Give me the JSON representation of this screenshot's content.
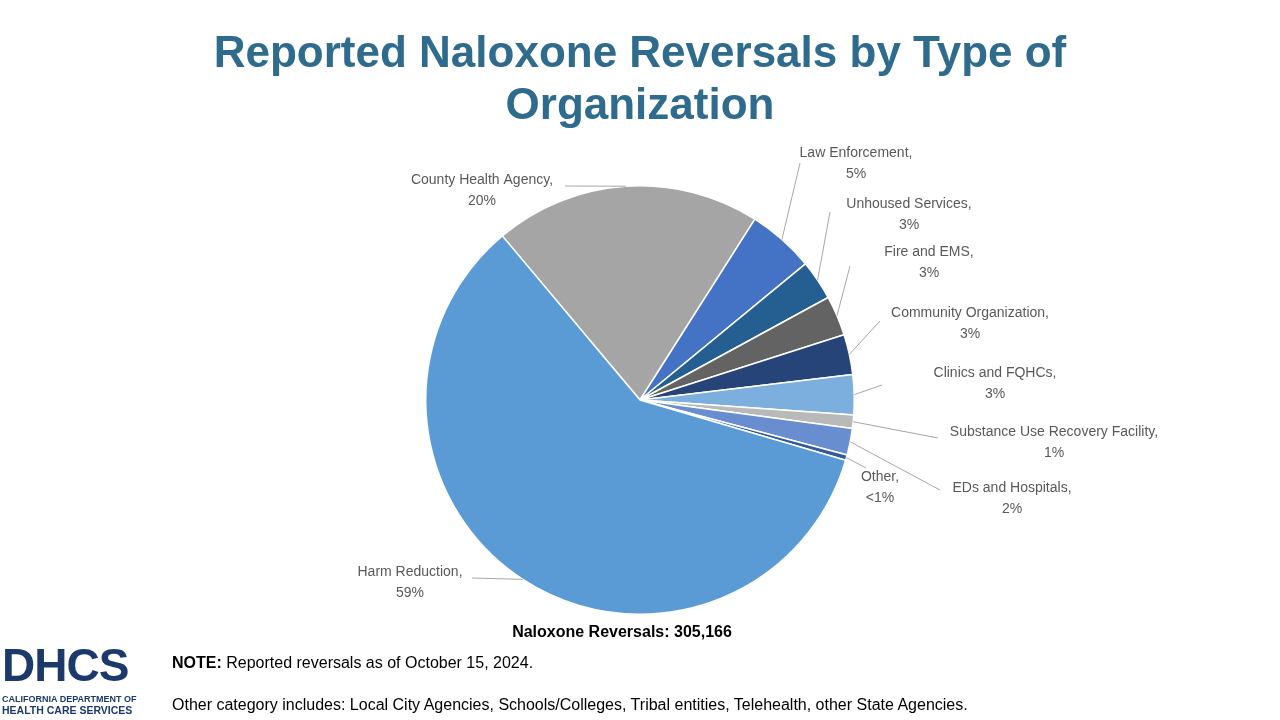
{
  "chart_data": {
    "type": "pie",
    "title": "Reported Naloxone Reversals by Type of Organization",
    "categories": [
      "County Health Agency,",
      "Law Enforcement,",
      "Unhoused Services,",
      "Fire and EMS,",
      "Community Organization,",
      "Clinics and FQHCs,",
      "Substance Use Recovery Facility,",
      "EDs and Hospitals,",
      "Other,",
      "Harm Reduction,"
    ],
    "values": [
      20,
      5,
      3,
      3,
      3,
      3,
      1,
      2,
      0.4,
      59
    ],
    "value_labels": [
      "20%",
      "5%",
      "3%",
      "3%",
      "3%",
      "3%",
      "1%",
      "2%",
      "<1%",
      "59%"
    ],
    "colors": [
      "#A5A5A5",
      "#4472C4",
      "#255E91",
      "#636363",
      "#264478",
      "#7CAFDD",
      "#B9B9B9",
      "#698ED0",
      "#335AA1",
      "#5B9BD5"
    ],
    "data_labels": true
  },
  "footer": {
    "total": "Naloxone Reversals: 305,166",
    "note_label": "NOTE:",
    "note": "Reported reversals as of October 15, 2024.",
    "other": "Other category includes: Local City Agencies, Schools/Colleges, Tribal entities, Telehealth, other State Agencies."
  },
  "logo": {
    "name": "DHCS",
    "lines": [
      "CALIFORNIA DEPARTMENT OF",
      "HEALTH CARE SERVICES"
    ]
  }
}
